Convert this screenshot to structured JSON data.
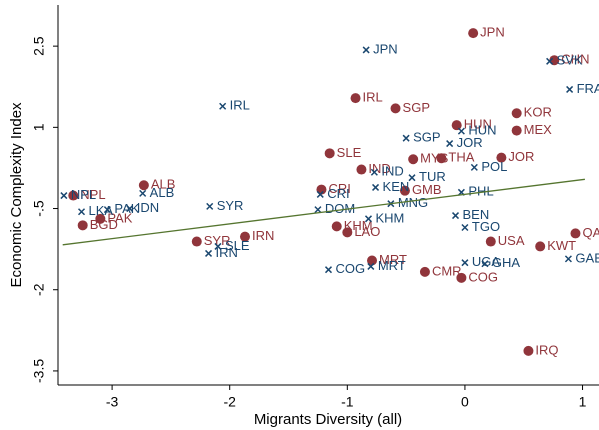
{
  "chart_data": {
    "type": "scatter",
    "x_label": "Migrants Diversity (all)",
    "y_label": "Economic Complexity Index",
    "xlim": [
      -3.46,
      1.14
    ],
    "ylim": [
      -3.76,
      3.26
    ],
    "xticks": [
      -3,
      -2,
      -1,
      0,
      1
    ],
    "yticks": [
      2.5,
      1,
      {
        "value": -0.5,
        "label": "-.5"
      },
      -2,
      -3.5
    ],
    "grid": false,
    "series": [
      {
        "marker": "circle",
        "color": "#90353b",
        "labels": [
          "JPN",
          "IRL",
          "SGP",
          "SLE",
          "IND",
          "MYS",
          "THA",
          "HUN",
          "KOR",
          "JOR",
          "CRI",
          "GMB",
          "ALB",
          "NPL",
          "PAK",
          "BGD",
          "SYR",
          "IRN",
          "KHM",
          "LAO",
          "MRT",
          "CMR",
          "COG",
          "IRQ",
          "QAT",
          "KWT",
          "USA",
          "MEX",
          "CHN"
        ],
        "x": [
          0.07,
          -0.93,
          -0.59,
          -1.15,
          -0.88,
          -0.44,
          -0.2,
          -0.07,
          0.44,
          0.31,
          -1.22,
          -0.51,
          -2.73,
          -3.33,
          -3.1,
          -3.25,
          -2.28,
          -1.87,
          -1.09,
          -1.0,
          -0.79,
          -0.34,
          -0.03,
          0.54,
          0.94,
          0.64,
          0.22,
          0.44,
          0.76
        ],
        "y": [
          2.74,
          1.54,
          1.35,
          0.52,
          0.22,
          0.41,
          0.43,
          1.04,
          1.26,
          0.44,
          -0.15,
          -0.17,
          -0.07,
          -0.26,
          -0.69,
          -0.81,
          -1.11,
          -1.02,
          -0.83,
          -0.94,
          -1.46,
          -1.67,
          -1.78,
          -3.13,
          -0.96,
          -1.2,
          -1.11,
          0.94,
          2.24
        ]
      },
      {
        "marker": "x",
        "color": "#1a476f",
        "labels": [
          "JPN",
          "IRL",
          "SGP",
          "IND",
          "JOR",
          "HUN",
          "POL",
          "TUR",
          "KEN",
          "CRI",
          "DOM",
          "MNG",
          "SYR",
          "ALB",
          "IDN",
          "PAK",
          "LKA",
          "NPL",
          "SLE",
          "IRN",
          "KHM",
          "MRT",
          "COG",
          "GHA",
          "UGA",
          "GAB",
          "PHL",
          "BEN",
          "TGO",
          "SVK",
          "FRA"
        ],
        "x": [
          -0.84,
          -2.06,
          -0.5,
          -0.77,
          -0.13,
          -0.03,
          0.08,
          -0.45,
          -0.76,
          -1.23,
          -1.25,
          -0.63,
          -2.17,
          -2.74,
          -2.85,
          -3.04,
          -3.26,
          -3.41,
          -2.1,
          -2.18,
          -0.82,
          -0.8,
          -1.16,
          0.17,
          0.0,
          0.88,
          -0.03,
          -0.08,
          0.0,
          0.72,
          0.89
        ],
        "y": [
          2.43,
          1.39,
          0.8,
          0.17,
          0.7,
          0.93,
          0.26,
          0.07,
          -0.11,
          -0.24,
          -0.52,
          -0.41,
          -0.46,
          -0.22,
          -0.5,
          -0.52,
          -0.56,
          -0.26,
          -1.2,
          -1.33,
          -0.69,
          -1.57,
          -1.63,
          -1.52,
          -1.5,
          -1.43,
          -0.2,
          -0.63,
          -0.85,
          2.22,
          1.7
        ]
      }
    ],
    "fit": {
      "color": "#55752f",
      "x": [
        -3.42,
        1.02
      ],
      "y": [
        -1.17,
        0.04
      ]
    }
  }
}
